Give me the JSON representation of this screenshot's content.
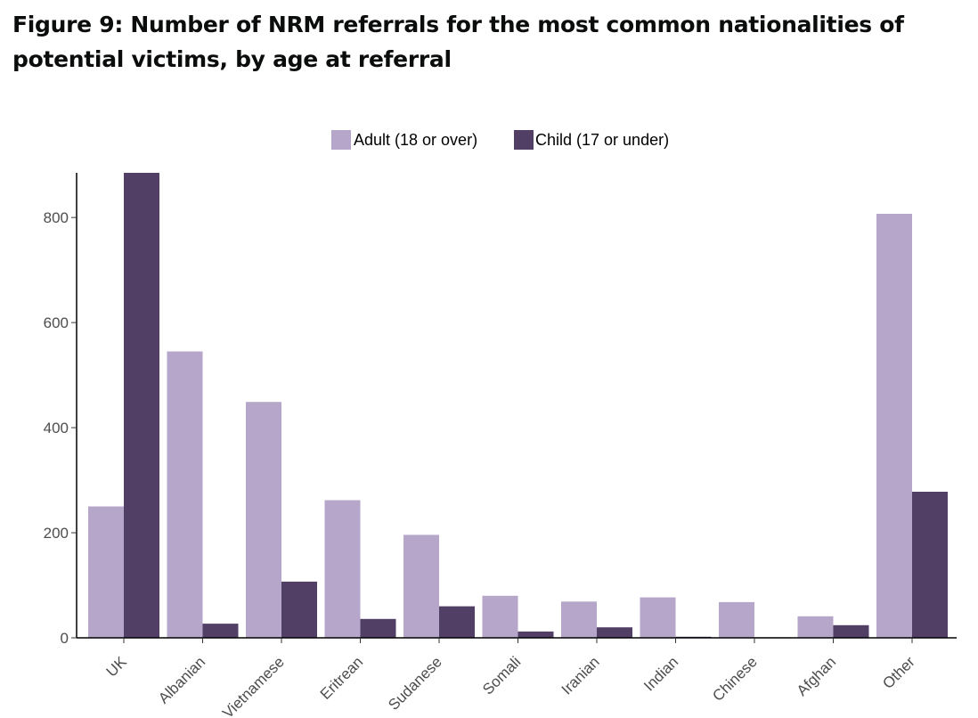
{
  "title": "Figure 9: Number of NRM referrals for the most common nationalities of potential victims, by age at referral",
  "chart_data": {
    "type": "bar",
    "categories": [
      "UK",
      "Albanian",
      "Vietnamese",
      "Eritrean",
      "Sudanese",
      "Somali",
      "Iranian",
      "Indian",
      "Chinese",
      "Afghan",
      "Other"
    ],
    "series": [
      {
        "name": "Adult (18 or over)",
        "color": "#b5a6ca",
        "values": [
          250,
          545,
          449,
          262,
          196,
          80,
          69,
          77,
          68,
          41,
          807
        ]
      },
      {
        "name": "Child (17 or under)",
        "color": "#523f66",
        "values": [
          885,
          27,
          107,
          36,
          60,
          12,
          20,
          2,
          1,
          24,
          278
        ]
      }
    ],
    "ylim": [
      0,
      885
    ],
    "yticks": [
      0,
      200,
      400,
      600,
      800
    ],
    "xlabel": "",
    "ylabel": "",
    "legend_position": "top",
    "grid": false
  }
}
